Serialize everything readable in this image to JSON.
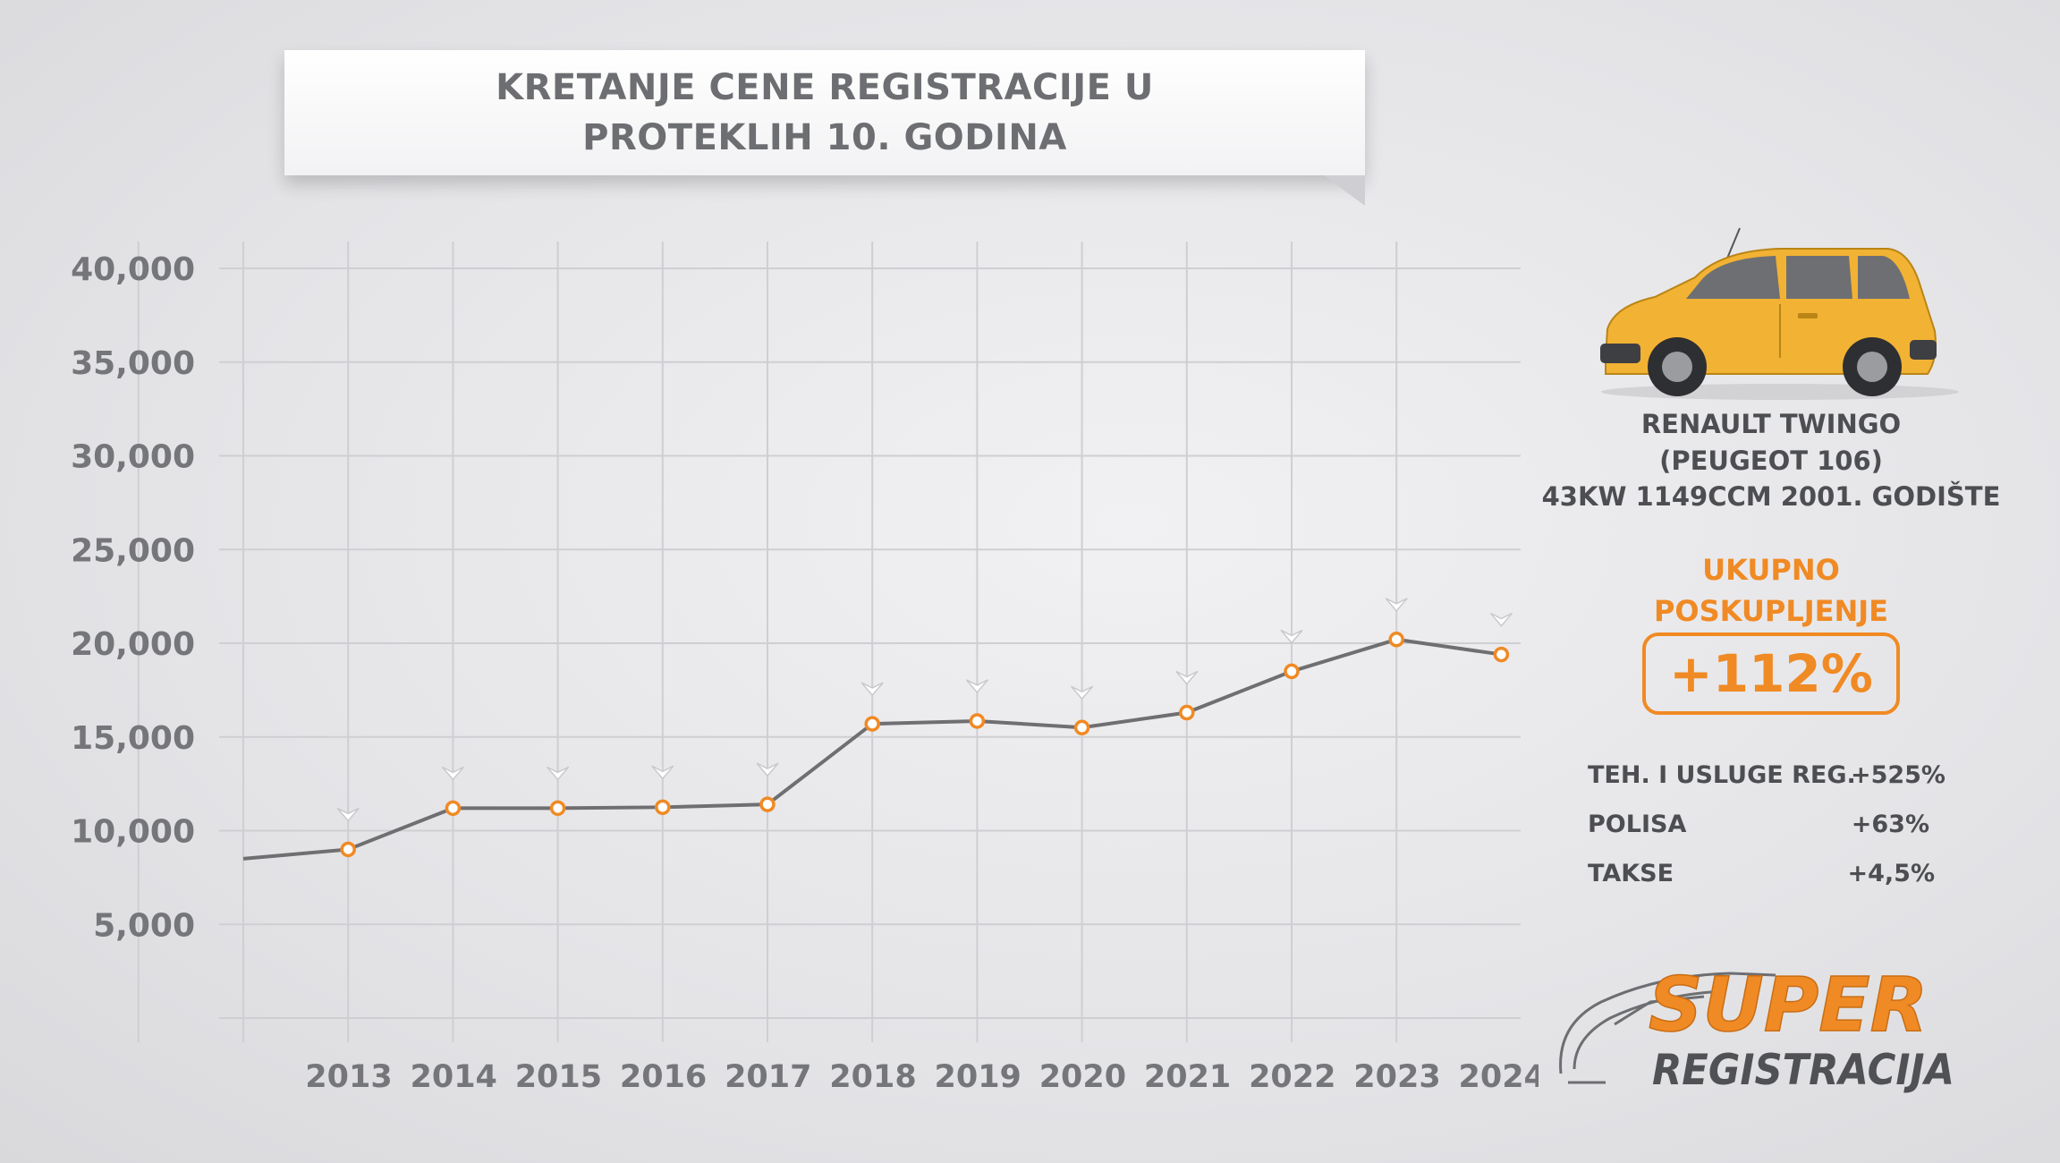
{
  "header": {
    "title_line1": "KRETANJE CENE REGISTRACIJE U",
    "title_line2": "PROTEKLIH 10. GODINA"
  },
  "chart_data": {
    "type": "line",
    "title": "KRETANJE CENE REGISTRACIJE U PROTEKLIH 10. GODINA",
    "categories": [
      "2013",
      "2014",
      "2015",
      "2016",
      "2017",
      "2018",
      "2019",
      "2020",
      "2021",
      "2022",
      "2023",
      "2024"
    ],
    "start_value": 8500,
    "values": [
      9000,
      11200,
      11200,
      11250,
      11400,
      15700,
      15850,
      15500,
      16300,
      18500,
      20200,
      19400
    ],
    "y_ticks": [
      "5,000",
      "10,000",
      "15,000",
      "20,000",
      "25,000",
      "30,000",
      "35,000",
      "40,000"
    ],
    "ylim": [
      0,
      40000
    ],
    "grid": true,
    "colors": {
      "line": "#6f6f72",
      "marker": "#f08a24",
      "grid": "#cfcfd3",
      "tick_text": "#75767a"
    }
  },
  "car": {
    "model": "RENAULT  TWINGO",
    "alias": "(PEUGEOT 106)",
    "specs": "43KW 1149CCM 2001. GODIŠTE",
    "icon": "yellow-car-icon",
    "color": "#f2b233"
  },
  "summary": {
    "label_line1": "UKUPNO",
    "label_line2": "POSKUPLJENJE",
    "total_increase": "+112%",
    "accent_color": "#f08a24",
    "rows": [
      {
        "label": "TEH. I USLUGE REG.",
        "value": "+525%"
      },
      {
        "label": "POLISA",
        "value": "+63%"
      },
      {
        "label": "TAKSE",
        "value": "+4,5%"
      }
    ]
  },
  "logo": {
    "word1": "SUPER",
    "word2": "REGISTRACIJA",
    "icon": "car-outline-icon"
  }
}
